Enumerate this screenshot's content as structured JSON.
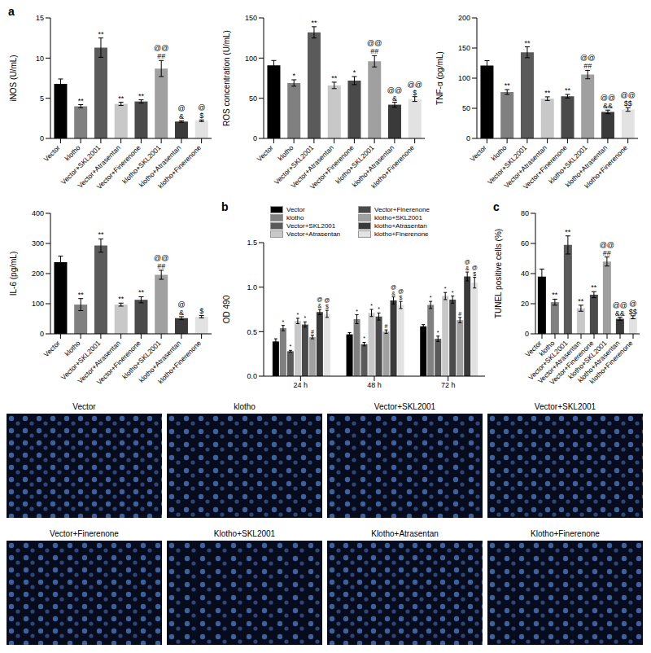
{
  "chart_data": [
    {
      "type": "bar",
      "panel": "a",
      "y_label": "iNOS (U/mL)",
      "categories": [
        "Vector",
        "klotho",
        "Vector+SKL2001",
        "Vector+Atrasentan",
        "Vector+Finerenone",
        "klotho+SKL2001",
        "klotho+Atrasentan",
        "klotho+Finerenone"
      ],
      "values": [
        6.8,
        4.0,
        11.3,
        4.3,
        4.6,
        8.7,
        2.1,
        2.2
      ],
      "errors": [
        0.6,
        0.2,
        1.2,
        0.2,
        0.2,
        1.0,
        0.1,
        0.1
      ],
      "annotations": [
        [],
        [
          "**"
        ],
        [
          "**"
        ],
        [
          "**"
        ],
        [
          "**"
        ],
        [
          "@@",
          "##"
        ],
        [
          "@",
          "&"
        ],
        [
          "@",
          "$"
        ]
      ],
      "colors": [
        "#000000",
        "#808080",
        "#5a5a5a",
        "#c8c8c8",
        "#4a4a4a",
        "#a0a0a0",
        "#3a3a3a",
        "#e2e2e2"
      ],
      "ylim": [
        0,
        15
      ],
      "yticks": [
        0,
        5,
        10,
        15
      ]
    },
    {
      "type": "bar",
      "y_label": "ROS concentration (U/mL)",
      "categories": [
        "Vector",
        "klotho",
        "Vector+SKL2001",
        "Vector+Atrasentan",
        "Vector+Finerenone",
        "klotho+SKL2001",
        "klotho+Atrasentan",
        "klotho+Finerenone"
      ],
      "values": [
        91,
        69,
        132,
        66,
        72,
        96,
        42,
        49
      ],
      "errors": [
        6,
        4,
        7,
        4,
        5,
        7,
        3,
        3
      ],
      "annotations": [
        [],
        [
          "*"
        ],
        [
          "**"
        ],
        [
          "**"
        ],
        [
          "*"
        ],
        [
          "@@",
          "##"
        ],
        [
          "@@",
          "&"
        ],
        [
          "@@",
          "$"
        ]
      ],
      "colors": [
        "#000000",
        "#808080",
        "#5a5a5a",
        "#c8c8c8",
        "#4a4a4a",
        "#a0a0a0",
        "#3a3a3a",
        "#e2e2e2"
      ],
      "ylim": [
        0,
        150
      ],
      "yticks": [
        0,
        50,
        100,
        150
      ]
    },
    {
      "type": "bar",
      "y_label": "TNF-α (pg/mL)",
      "categories": [
        "Vector",
        "klotho",
        "Vector+SKL2001",
        "Vector+Atrasentan",
        "Vector+Finerenone",
        "klotho+SKL2001",
        "klotho+Atrasentan",
        "klotho+Finerenone"
      ],
      "values": [
        121,
        77,
        143,
        66,
        70,
        106,
        44,
        48
      ],
      "errors": [
        8,
        4,
        9,
        3,
        3,
        7,
        3,
        3
      ],
      "annotations": [
        [],
        [
          "**"
        ],
        [
          "**"
        ],
        [
          "**"
        ],
        [
          "**"
        ],
        [
          "@@",
          "##"
        ],
        [
          "@@",
          "&&"
        ],
        [
          "@@",
          "$$"
        ]
      ],
      "colors": [
        "#000000",
        "#808080",
        "#5a5a5a",
        "#c8c8c8",
        "#4a4a4a",
        "#a0a0a0",
        "#3a3a3a",
        "#e2e2e2"
      ],
      "ylim": [
        0,
        200
      ],
      "yticks": [
        0,
        50,
        100,
        150,
        200
      ]
    },
    {
      "type": "bar",
      "y_label": "IL-6 (pg/mL)",
      "categories": [
        "Vector",
        "klotho",
        "Vector+SKL2001",
        "Vector+Atrasentan",
        "Vector+Finerenone",
        "klotho+SKL2001",
        "klotho+Atrasentan",
        "klotho+Finerenone"
      ],
      "values": [
        238,
        97,
        293,
        97,
        113,
        196,
        52,
        57
      ],
      "errors": [
        20,
        20,
        22,
        5,
        10,
        15,
        5,
        4
      ],
      "annotations": [
        [],
        [
          "**"
        ],
        [
          "**"
        ],
        [
          "**"
        ],
        [
          "**"
        ],
        [
          "@@",
          "##"
        ],
        [
          "@",
          "&"
        ],
        [
          "$"
        ]
      ],
      "colors": [
        "#000000",
        "#808080",
        "#5a5a5a",
        "#c8c8c8",
        "#4a4a4a",
        "#a0a0a0",
        "#3a3a3a",
        "#e2e2e2"
      ],
      "ylim": [
        0,
        400
      ],
      "yticks": [
        0,
        100,
        200,
        300,
        400
      ]
    },
    {
      "type": "bar",
      "panel": "b",
      "y_label": "OD 490",
      "categories": [
        "24 h",
        "48 h",
        "72 h"
      ],
      "legend": "top",
      "ylim": [
        0,
        1.5
      ],
      "yticks": [
        {
          "value": 0,
          "label": "0.0"
        },
        {
          "value": 0.5,
          "label": "0.5"
        },
        {
          "value": 1,
          "label": "1.0"
        },
        {
          "value": 1.5,
          "label": "1.5"
        }
      ],
      "series": [
        {
          "name": "Vector",
          "color": "#000000",
          "values": [
            0.39,
            0.47,
            0.56
          ],
          "errors": [
            0.03,
            0.02,
            0.02
          ],
          "annotations": [
            [],
            [],
            []
          ]
        },
        {
          "name": "klotho",
          "color": "#808080",
          "values": [
            0.54,
            0.64,
            0.8
          ],
          "errors": [
            0.03,
            0.05,
            0.04
          ],
          "annotations": [
            [
              "*"
            ],
            [
              "*"
            ],
            [
              "*"
            ]
          ]
        },
        {
          "name": "Vector+SKL2001",
          "color": "#5a5a5a",
          "values": [
            0.28,
            0.36,
            0.42
          ],
          "errors": [
            0.01,
            0.02,
            0.03
          ],
          "annotations": [
            [
              "*"
            ],
            [
              "*"
            ],
            [
              "*"
            ]
          ]
        },
        {
          "name": "Vector+Atrasentan",
          "color": "#c8c8c8",
          "values": [
            0.62,
            0.71,
            0.9
          ],
          "errors": [
            0.03,
            0.04,
            0.04
          ],
          "annotations": [
            [
              "*"
            ],
            [
              "*"
            ],
            [
              "*"
            ]
          ]
        },
        {
          "name": "Vector+Finerenone",
          "color": "#4a4a4a",
          "values": [
            0.58,
            0.67,
            0.86
          ],
          "errors": [
            0.03,
            0.04,
            0.04
          ],
          "annotations": [
            [
              "*"
            ],
            [
              "*"
            ],
            [
              "*"
            ]
          ]
        },
        {
          "name": "klotho+SKL2001",
          "color": "#a0a0a0",
          "values": [
            0.44,
            0.5,
            0.63
          ],
          "errors": [
            0.02,
            0.02,
            0.03
          ],
          "annotations": [
            [
              "#"
            ],
            [
              "#"
            ],
            [
              "#"
            ]
          ]
        },
        {
          "name": "klotho+Atrasentan",
          "color": "#3a3a3a",
          "values": [
            0.72,
            0.85,
            1.12
          ],
          "errors": [
            0.03,
            0.04,
            0.05
          ],
          "annotations": [
            [
              "@",
              "&"
            ],
            [
              "@",
              "&"
            ],
            [
              "@",
              "&"
            ]
          ]
        },
        {
          "name": "klotho+Finerenone",
          "color": "#e2e2e2",
          "values": [
            0.7,
            0.8,
            1.05
          ],
          "errors": [
            0.04,
            0.04,
            0.06
          ],
          "annotations": [
            [
              "@",
              "$"
            ],
            [
              "@",
              "$"
            ],
            [
              "@",
              "$"
            ]
          ]
        }
      ]
    },
    {
      "type": "bar",
      "panel": "c",
      "y_label": "TUNEL positive cells (%)",
      "categories": [
        "Vector",
        "klotho",
        "Vector+SKL2001",
        "Vector+Atrasentan",
        "Vector+Finerenone",
        "klotho+SKL2001",
        "klotho+Atrasentan",
        "klotho+Finerenone"
      ],
      "values": [
        38,
        21,
        59,
        17,
        26,
        48,
        10,
        11
      ],
      "errors": [
        5,
        2,
        6,
        2,
        2,
        3,
        1,
        1
      ],
      "annotations": [
        [],
        [
          "**"
        ],
        [
          "**"
        ],
        [
          "**"
        ],
        [
          "**"
        ],
        [
          "@@",
          "##"
        ],
        [
          "@@",
          "&&"
        ],
        [
          "@",
          "$$"
        ]
      ],
      "colors": [
        "#000000",
        "#808080",
        "#5a5a5a",
        "#c8c8c8",
        "#4a4a4a",
        "#a0a0a0",
        "#3a3a3a",
        "#e2e2e2"
      ],
      "ylim": [
        0,
        80
      ],
      "yticks": [
        0,
        20,
        40,
        60,
        80
      ]
    }
  ],
  "images": {
    "labels": [
      "Vector",
      "klotho",
      "Vector+SKL2001",
      "Vector+SKL2001",
      "Vector+Finerenone",
      "Klotho+SKL2001",
      "Klotho+Atrasentan",
      "Klotho+Finerenone"
    ]
  }
}
